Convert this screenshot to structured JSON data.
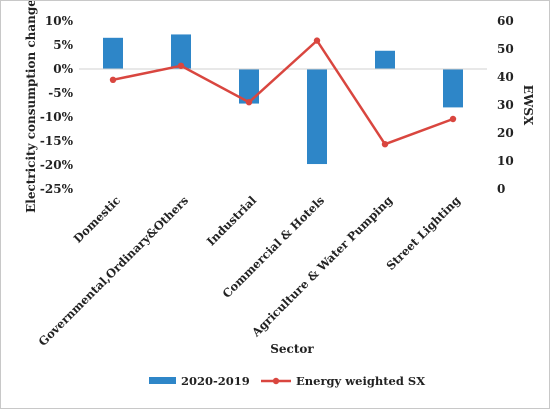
{
  "chart_data": {
    "type": "bar+line",
    "xlabel": "Sector",
    "ylabel": "Electricity  consumption change",
    "y2label": "EWSX",
    "categories": [
      "Domestic",
      "Governmental,Ordinary&Others",
      "Industrial",
      "Commercial & Hotels",
      "Agriculture & Water Pumping",
      "Street Lighting"
    ],
    "ylim": [
      -25,
      10
    ],
    "yticks": [
      "10%",
      "5%",
      "0%",
      "-5%",
      "-10%",
      "-15%",
      "-20%",
      "-25%"
    ],
    "y2lim": [
      0,
      60
    ],
    "y2ticks": [
      "60",
      "50",
      "40",
      "30",
      "20",
      "10",
      "0"
    ],
    "series": [
      {
        "name": "2020-2019",
        "type": "bar",
        "axis": "left",
        "color": "#2e86c8",
        "values": [
          6.5,
          7.2,
          -7.2,
          -19.8,
          3.8,
          -8.0
        ]
      },
      {
        "name": "Energy weighted SX",
        "type": "line",
        "axis": "right",
        "color": "#d9463f",
        "values": [
          39,
          44,
          31,
          53,
          16,
          25
        ]
      }
    ],
    "legend_position": "bottom",
    "grid": false
  }
}
